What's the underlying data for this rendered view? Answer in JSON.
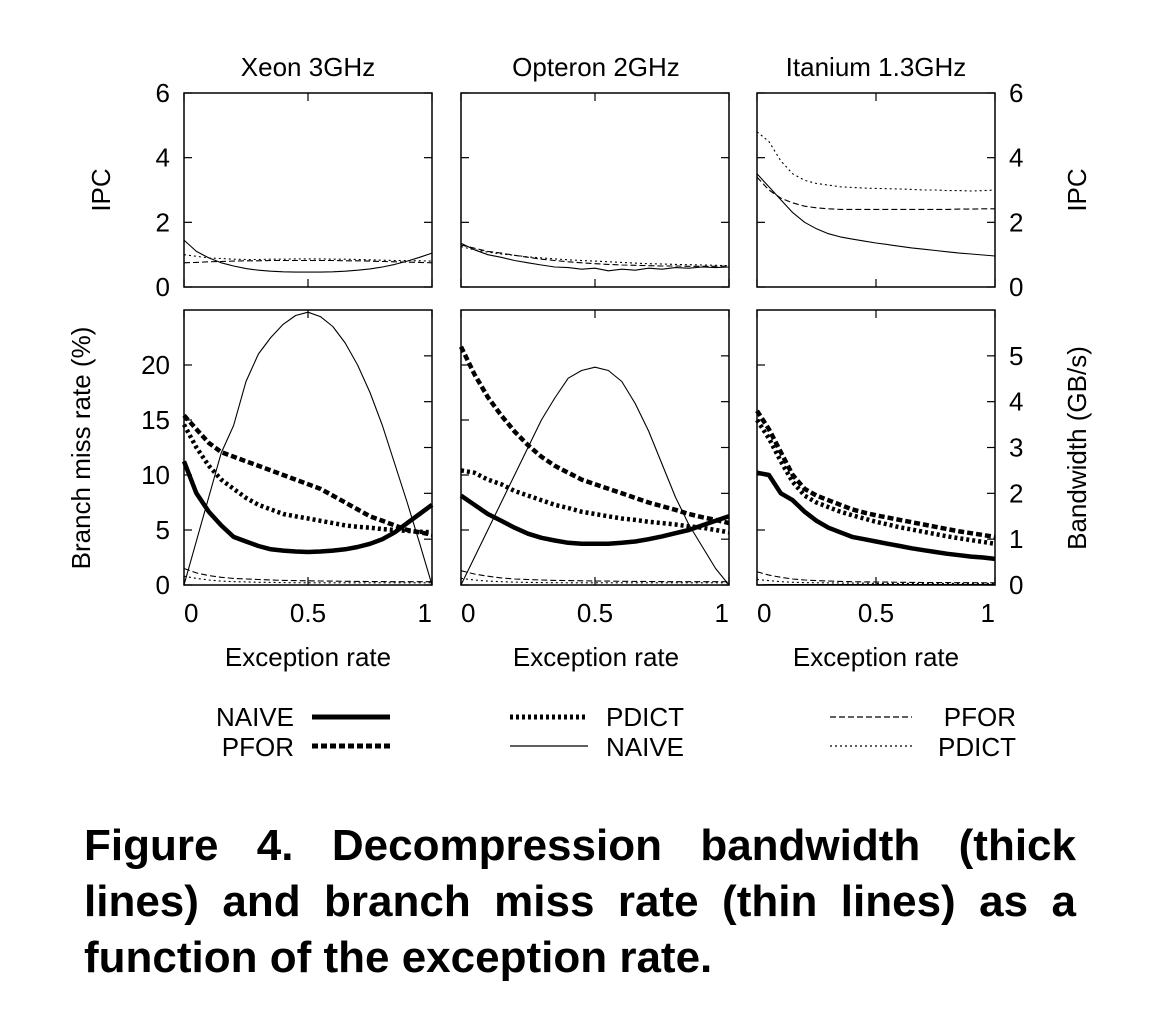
{
  "figure": {
    "caption_lines": [
      "Figure 4. Decompression bandwidth (thick",
      "lines) and branch miss rate (thin lines) as a",
      "function of the exception rate."
    ]
  },
  "legend": {
    "entries": [
      {
        "label": "NAIVE",
        "style": "thick-solid"
      },
      {
        "label": "PFOR",
        "style": "thick-dashed"
      },
      {
        "label": "PDICT",
        "style": "thick-dotted"
      },
      {
        "label": "NAIVE",
        "style": "thin-solid"
      },
      {
        "label": "PFOR",
        "style": "thin-dashed"
      },
      {
        "label": "PDICT",
        "style": "thin-dotted"
      }
    ]
  },
  "chart_data": [
    {
      "type": "line",
      "panel": "ipc",
      "title": "Xeon 3GHz",
      "ylabel": "IPC",
      "ylim": [
        0,
        6
      ],
      "yticks": [
        "0",
        "2",
        "4",
        "6"
      ],
      "x": [
        0,
        0.05,
        0.1,
        0.15,
        0.2,
        0.25,
        0.3,
        0.35,
        0.4,
        0.45,
        0.5,
        0.55,
        0.6,
        0.65,
        0.7,
        0.75,
        0.8,
        0.85,
        0.9,
        0.95,
        1.0
      ],
      "series": [
        {
          "name": "NAIVE",
          "style": "thin-solid",
          "values": [
            1.45,
            1.1,
            0.9,
            0.75,
            0.65,
            0.57,
            0.52,
            0.49,
            0.47,
            0.46,
            0.46,
            0.46,
            0.47,
            0.49,
            0.52,
            0.56,
            0.62,
            0.7,
            0.8,
            0.92,
            1.05
          ]
        },
        {
          "name": "PFOR",
          "style": "thin-dashed",
          "values": [
            0.75,
            0.76,
            0.78,
            0.79,
            0.8,
            0.81,
            0.81,
            0.82,
            0.82,
            0.82,
            0.82,
            0.82,
            0.82,
            0.81,
            0.81,
            0.8,
            0.79,
            0.78,
            0.77,
            0.76,
            0.75
          ]
        },
        {
          "name": "PDICT",
          "style": "thin-dotted",
          "values": [
            1.0,
            0.95,
            0.9,
            0.88,
            0.86,
            0.85,
            0.85,
            0.86,
            0.86,
            0.87,
            0.87,
            0.87,
            0.86,
            0.86,
            0.85,
            0.84,
            0.83,
            0.82,
            0.82,
            0.81,
            0.8
          ]
        }
      ]
    },
    {
      "type": "line",
      "panel": "ipc",
      "title": "Opteron 2GHz",
      "ylabel": "",
      "ylim": [
        0,
        6
      ],
      "yticks": [],
      "x": [
        0,
        0.05,
        0.1,
        0.15,
        0.2,
        0.25,
        0.3,
        0.35,
        0.4,
        0.45,
        0.5,
        0.55,
        0.6,
        0.65,
        0.7,
        0.75,
        0.8,
        0.85,
        0.9,
        0.95,
        1.0
      ],
      "series": [
        {
          "name": "NAIVE",
          "style": "thin-solid",
          "values": [
            1.35,
            1.15,
            1.0,
            0.92,
            0.82,
            0.75,
            0.68,
            0.62,
            0.6,
            0.55,
            0.58,
            0.5,
            0.55,
            0.52,
            0.58,
            0.55,
            0.6,
            0.58,
            0.62,
            0.6,
            0.62
          ]
        },
        {
          "name": "PFOR",
          "style": "thin-dashed",
          "values": [
            1.3,
            1.2,
            1.1,
            1.05,
            0.98,
            0.92,
            0.86,
            0.82,
            0.78,
            0.75,
            0.72,
            0.7,
            0.68,
            0.67,
            0.66,
            0.65,
            0.65,
            0.64,
            0.64,
            0.64,
            0.65
          ]
        },
        {
          "name": "PDICT",
          "style": "thin-dotted",
          "values": [
            1.25,
            1.15,
            1.08,
            1.02,
            0.98,
            0.93,
            0.9,
            0.87,
            0.84,
            0.82,
            0.8,
            0.78,
            0.76,
            0.74,
            0.72,
            0.71,
            0.7,
            0.69,
            0.68,
            0.67,
            0.66
          ]
        }
      ]
    },
    {
      "type": "line",
      "panel": "ipc",
      "title": "Itanium 1.3GHz",
      "ylabel": "IPC",
      "ylim": [
        0,
        6
      ],
      "yticks": [
        "0",
        "2",
        "4",
        "6"
      ],
      "x": [
        0,
        0.05,
        0.1,
        0.15,
        0.2,
        0.25,
        0.3,
        0.35,
        0.4,
        0.45,
        0.5,
        0.55,
        0.6,
        0.65,
        0.7,
        0.75,
        0.8,
        0.85,
        0.9,
        0.95,
        1.0
      ],
      "series": [
        {
          "name": "NAIVE",
          "style": "thin-solid",
          "values": [
            3.5,
            3.1,
            2.7,
            2.3,
            2.0,
            1.8,
            1.65,
            1.55,
            1.48,
            1.42,
            1.36,
            1.31,
            1.26,
            1.21,
            1.17,
            1.13,
            1.09,
            1.05,
            1.02,
            0.99,
            0.96
          ]
        },
        {
          "name": "PFOR",
          "style": "thin-dashed",
          "values": [
            3.4,
            3.0,
            2.75,
            2.6,
            2.5,
            2.45,
            2.42,
            2.4,
            2.4,
            2.4,
            2.4,
            2.4,
            2.4,
            2.4,
            2.4,
            2.4,
            2.4,
            2.41,
            2.41,
            2.42,
            2.42
          ]
        },
        {
          "name": "PDICT",
          "style": "thin-dotted",
          "values": [
            4.8,
            4.5,
            3.9,
            3.5,
            3.3,
            3.2,
            3.15,
            3.1,
            3.08,
            3.06,
            3.05,
            3.04,
            3.03,
            3.02,
            3.0,
            3.0,
            2.98,
            2.98,
            2.97,
            2.98,
            3.0
          ]
        }
      ]
    },
    {
      "type": "line",
      "panel": "bandwidth",
      "title": "",
      "xlabel": "Exception rate",
      "ylabel": "Branch miss rate (%)",
      "xlim": [
        0,
        1
      ],
      "xticks": [
        "0",
        "0.5",
        "1"
      ],
      "ylim": [
        0,
        25
      ],
      "yticks": [
        "0",
        "5",
        "10",
        "15",
        "20"
      ],
      "x": [
        0,
        0.05,
        0.1,
        0.15,
        0.2,
        0.25,
        0.3,
        0.35,
        0.4,
        0.45,
        0.5,
        0.55,
        0.6,
        0.65,
        0.7,
        0.75,
        0.8,
        0.85,
        0.9,
        0.95,
        1.0
      ],
      "series": [
        {
          "name": "NAIVE",
          "style": "thick-solid",
          "axis": "bandwidth",
          "values": [
            2.7,
            2.0,
            1.6,
            1.3,
            1.05,
            0.95,
            0.85,
            0.78,
            0.75,
            0.73,
            0.72,
            0.73,
            0.75,
            0.78,
            0.83,
            0.9,
            1.0,
            1.15,
            1.35,
            1.55,
            1.75
          ]
        },
        {
          "name": "PFOR",
          "style": "thick-dashed",
          "axis": "bandwidth",
          "values": [
            3.7,
            3.4,
            3.1,
            2.9,
            2.8,
            2.7,
            2.6,
            2.5,
            2.4,
            2.3,
            2.2,
            2.1,
            1.95,
            1.8,
            1.65,
            1.5,
            1.4,
            1.3,
            1.2,
            1.15,
            1.1
          ]
        },
        {
          "name": "PDICT",
          "style": "thick-dotted",
          "axis": "bandwidth",
          "values": [
            3.5,
            3.0,
            2.6,
            2.3,
            2.1,
            1.9,
            1.75,
            1.65,
            1.55,
            1.5,
            1.45,
            1.4,
            1.35,
            1.3,
            1.27,
            1.25,
            1.22,
            1.2,
            1.18,
            1.16,
            1.15
          ]
        },
        {
          "name": "NAIVE",
          "style": "thin-solid",
          "axis": "miss",
          "values": [
            0,
            4.0,
            8.0,
            12.0,
            14.5,
            18.5,
            21.0,
            22.5,
            23.7,
            24.5,
            24.8,
            24.4,
            23.5,
            22.0,
            20.0,
            17.5,
            14.5,
            11.0,
            7.5,
            3.8,
            0
          ]
        },
        {
          "name": "PFOR",
          "style": "thin-dashed",
          "axis": "miss",
          "values": [
            1.5,
            1.1,
            0.85,
            0.7,
            0.6,
            0.55,
            0.5,
            0.45,
            0.42,
            0.4,
            0.38,
            0.36,
            0.35,
            0.34,
            0.33,
            0.32,
            0.31,
            0.3,
            0.3,
            0.3,
            0.3
          ]
        },
        {
          "name": "PDICT",
          "style": "thin-dotted",
          "axis": "miss",
          "values": [
            0.8,
            0.6,
            0.45,
            0.35,
            0.3,
            0.28,
            0.25,
            0.24,
            0.22,
            0.21,
            0.2,
            0.2,
            0.2,
            0.2,
            0.2,
            0.2,
            0.2,
            0.2,
            0.2,
            0.2,
            0.2
          ]
        }
      ]
    },
    {
      "type": "line",
      "panel": "bandwidth",
      "title": "",
      "xlabel": "Exception rate",
      "ylabel": "",
      "xlim": [
        0,
        1
      ],
      "xticks": [
        "0",
        "0.5",
        "1"
      ],
      "ylim": [
        0,
        25
      ],
      "yticks": [],
      "x": [
        0,
        0.05,
        0.1,
        0.15,
        0.2,
        0.25,
        0.3,
        0.35,
        0.4,
        0.45,
        0.5,
        0.55,
        0.6,
        0.65,
        0.7,
        0.75,
        0.8,
        0.85,
        0.9,
        0.95,
        1.0
      ],
      "series": [
        {
          "name": "NAIVE",
          "style": "thick-solid",
          "axis": "bandwidth",
          "values": [
            1.95,
            1.75,
            1.55,
            1.4,
            1.25,
            1.12,
            1.03,
            0.97,
            0.92,
            0.9,
            0.9,
            0.9,
            0.92,
            0.95,
            1.0,
            1.06,
            1.13,
            1.2,
            1.3,
            1.4,
            1.5
          ]
        },
        {
          "name": "PFOR",
          "style": "thick-dashed",
          "axis": "bandwidth",
          "values": [
            5.2,
            4.6,
            4.1,
            3.7,
            3.35,
            3.05,
            2.8,
            2.6,
            2.45,
            2.3,
            2.2,
            2.1,
            2.0,
            1.9,
            1.8,
            1.72,
            1.64,
            1.55,
            1.48,
            1.42,
            1.35
          ]
        },
        {
          "name": "PDICT",
          "style": "thick-dotted",
          "axis": "bandwidth",
          "values": [
            2.5,
            2.45,
            2.3,
            2.2,
            2.05,
            1.95,
            1.85,
            1.75,
            1.68,
            1.6,
            1.55,
            1.5,
            1.45,
            1.42,
            1.38,
            1.35,
            1.32,
            1.28,
            1.25,
            1.2,
            1.15
          ]
        },
        {
          "name": "NAIVE",
          "style": "thin-solid",
          "axis": "miss",
          "values": [
            0,
            2.5,
            5.0,
            7.5,
            10.0,
            12.5,
            15.0,
            17.0,
            18.8,
            19.5,
            19.8,
            19.5,
            18.5,
            16.5,
            14.0,
            11.0,
            8.0,
            5.5,
            3.5,
            1.5,
            0
          ]
        },
        {
          "name": "PFOR",
          "style": "thin-dashed",
          "axis": "miss",
          "values": [
            1.3,
            1.0,
            0.8,
            0.65,
            0.55,
            0.5,
            0.45,
            0.42,
            0.4,
            0.38,
            0.36,
            0.35,
            0.34,
            0.33,
            0.32,
            0.31,
            0.3,
            0.3,
            0.3,
            0.3,
            0.3
          ]
        },
        {
          "name": "PDICT",
          "style": "thin-dotted",
          "axis": "miss",
          "values": [
            0.6,
            0.45,
            0.35,
            0.3,
            0.26,
            0.24,
            0.22,
            0.21,
            0.2,
            0.2,
            0.2,
            0.2,
            0.2,
            0.2,
            0.2,
            0.2,
            0.2,
            0.2,
            0.2,
            0.2,
            0.2
          ]
        }
      ]
    },
    {
      "type": "line",
      "panel": "bandwidth",
      "title": "",
      "xlabel": "Exception rate",
      "ylabel": "Bandwidth (GB/s)",
      "xlim": [
        0,
        1
      ],
      "xticks": [
        "0",
        "0.5",
        "1"
      ],
      "ylim": [
        0,
        6
      ],
      "yticks": [
        "0",
        "1",
        "2",
        "3",
        "4",
        "5"
      ],
      "x": [
        0,
        0.05,
        0.1,
        0.15,
        0.2,
        0.25,
        0.3,
        0.35,
        0.4,
        0.45,
        0.5,
        0.55,
        0.6,
        0.65,
        0.7,
        0.75,
        0.8,
        0.85,
        0.9,
        0.95,
        1.0
      ],
      "series": [
        {
          "name": "NAIVE",
          "style": "thick-solid",
          "axis": "bandwidth",
          "values": [
            2.45,
            2.4,
            2.0,
            1.85,
            1.6,
            1.4,
            1.25,
            1.15,
            1.05,
            1.0,
            0.95,
            0.9,
            0.85,
            0.8,
            0.76,
            0.72,
            0.68,
            0.65,
            0.62,
            0.6,
            0.57
          ]
        },
        {
          "name": "PFOR",
          "style": "thick-dashed",
          "axis": "bandwidth",
          "values": [
            3.8,
            3.4,
            2.9,
            2.4,
            2.1,
            1.95,
            1.85,
            1.75,
            1.65,
            1.58,
            1.52,
            1.47,
            1.42,
            1.37,
            1.32,
            1.27,
            1.22,
            1.17,
            1.13,
            1.09,
            1.05
          ]
        },
        {
          "name": "PDICT",
          "style": "thick-dotted",
          "axis": "bandwidth",
          "values": [
            3.6,
            3.2,
            2.7,
            2.25,
            1.95,
            1.8,
            1.7,
            1.6,
            1.52,
            1.45,
            1.38,
            1.32,
            1.26,
            1.21,
            1.16,
            1.11,
            1.06,
            1.02,
            0.98,
            0.94,
            0.9
          ]
        },
        {
          "name": "NAIVE",
          "style": "thin-solid",
          "axis": "miss",
          "values": [
            0,
            0.05,
            0.05,
            0.05,
            0.05,
            0.05,
            0.05,
            0.05,
            0.05,
            0.05,
            0.05,
            0.05,
            0.05,
            0.05,
            0.05,
            0.05,
            0.05,
            0.05,
            0.05,
            0.05,
            0.05
          ]
        },
        {
          "name": "PFOR",
          "style": "thin-dashed",
          "axis": "miss",
          "values": [
            1.2,
            0.9,
            0.7,
            0.55,
            0.45,
            0.4,
            0.36,
            0.33,
            0.3,
            0.28,
            0.27,
            0.26,
            0.25,
            0.24,
            0.23,
            0.22,
            0.22,
            0.21,
            0.21,
            0.2,
            0.2
          ]
        },
        {
          "name": "PDICT",
          "style": "thin-dotted",
          "axis": "miss",
          "values": [
            0.5,
            0.4,
            0.3,
            0.25,
            0.22,
            0.2,
            0.19,
            0.18,
            0.17,
            0.16,
            0.15,
            0.15,
            0.15,
            0.15,
            0.15,
            0.15,
            0.15,
            0.15,
            0.15,
            0.15,
            0.15
          ]
        }
      ]
    }
  ]
}
